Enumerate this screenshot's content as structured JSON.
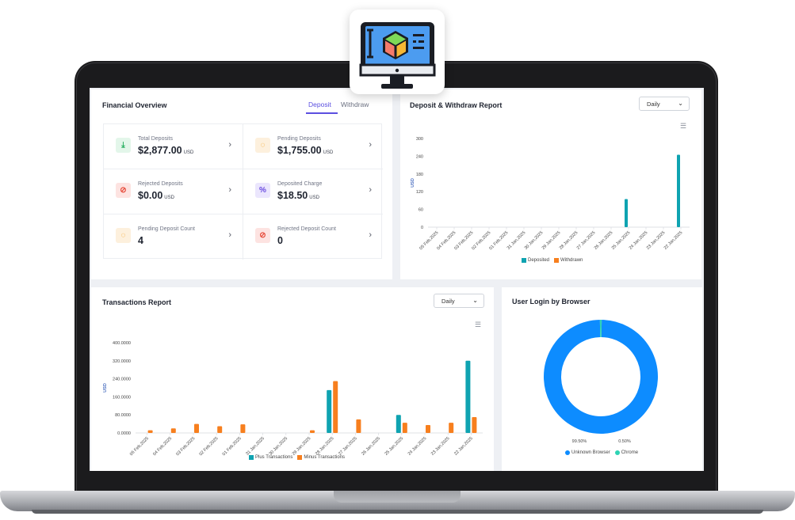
{
  "financial_overview": {
    "title": "Financial Overview",
    "tabs": [
      "Deposit",
      "Withdraw"
    ],
    "stats": [
      {
        "label": "Total Deposits",
        "value": "$2,877.00",
        "unit": "USD",
        "icon": "download-icon",
        "color": "#27ae60",
        "bg": "#e3f6ea",
        "glyph": "⤓"
      },
      {
        "label": "Pending Deposits",
        "value": "$1,755.00",
        "unit": "USD",
        "icon": "pending-icon",
        "color": "#f39c12",
        "bg": "#fdf0dd",
        "glyph": "◌"
      },
      {
        "label": "Rejected Deposits",
        "value": "$0.00",
        "unit": "USD",
        "icon": "ban-icon",
        "color": "#e74c3c",
        "bg": "#fde3e1",
        "glyph": "⊘"
      },
      {
        "label": "Deposited Charge",
        "value": "$18.50",
        "unit": "USD",
        "icon": "percent-icon",
        "color": "#6a4be0",
        "bg": "#ebe6fd",
        "glyph": "%"
      },
      {
        "label": "Pending Deposit Count",
        "value": "4",
        "unit": "",
        "icon": "pending-icon",
        "color": "#f39c12",
        "bg": "#fdf0dd",
        "glyph": "◌"
      },
      {
        "label": "Rejected Deposit Count",
        "value": "0",
        "unit": "",
        "icon": "ban-icon",
        "color": "#e74c3c",
        "bg": "#fde3e1",
        "glyph": "⊘"
      }
    ]
  },
  "deposit_report": {
    "title": "Deposit & Withdraw Report",
    "select": "Daily",
    "menu_icon": "hamburger-menu-icon"
  },
  "transactions_report": {
    "title": "Transactions Report",
    "select": "Daily",
    "menu_icon": "hamburger-menu-icon"
  },
  "user_login": {
    "title": "User Login by Browser"
  },
  "chart_data": [
    {
      "type": "bar",
      "id": "deposit-withdraw",
      "categories": [
        "05 Feb,2025",
        "04 Feb,2025",
        "03 Feb,2025",
        "02 Feb,2025",
        "01 Feb,2025",
        "31 Jan,2025",
        "30 Jan,2025",
        "29 Jan,2025",
        "28 Jan,2025",
        "27 Jan,2025",
        "26 Jan,2025",
        "25 Jan,2025",
        "24 Jan,2025",
        "23 Jan,2025",
        "22 Jan,2025"
      ],
      "series": [
        {
          "name": "Deposited",
          "color": "#0fa3b1",
          "values": [
            0,
            0,
            0,
            0,
            0,
            0,
            0,
            0,
            0,
            0,
            0,
            95,
            0,
            0,
            245
          ]
        },
        {
          "name": "Withdrawn",
          "color": "#f77f1e",
          "values": [
            0,
            0,
            0,
            0,
            0,
            0,
            0,
            0,
            0,
            0,
            0,
            0,
            0,
            0,
            0
          ]
        }
      ],
      "ylabel": "USD",
      "yticks": [
        "0",
        "60",
        "120",
        "180",
        "240",
        "300"
      ],
      "ylim": [
        0,
        300
      ],
      "legend": "bottom"
    },
    {
      "type": "bar",
      "id": "transactions",
      "categories": [
        "05 Feb,2025",
        "04 Feb,2025",
        "03 Feb,2025",
        "02 Feb,2025",
        "01 Feb,2025",
        "31 Jan,2025",
        "30 Jan,2025",
        "29 Jan,2025",
        "28 Jan,2025",
        "27 Jan,2025",
        "26 Jan,2025",
        "25 Jan,2025",
        "24 Jan,2025",
        "23 Jan,2025",
        "22 Jan,2025"
      ],
      "series": [
        {
          "name": "Plus Transactions",
          "color": "#0fa3b1",
          "values": [
            0,
            0,
            0,
            0,
            0,
            0,
            0,
            0,
            190,
            0,
            0,
            80,
            0,
            0,
            320
          ]
        },
        {
          "name": "Minus Transactions",
          "color": "#f77f1e",
          "values": [
            12,
            20,
            40,
            30,
            38,
            0,
            0,
            12,
            230,
            60,
            0,
            45,
            35,
            45,
            70
          ]
        }
      ],
      "ylabel": "USD",
      "yticks": [
        "0.0000",
        "80.0000",
        "160.0000",
        "240.0000",
        "320.0000",
        "400.0000"
      ],
      "ylim": [
        0,
        400
      ],
      "legend": "bottom"
    },
    {
      "type": "pie",
      "id": "browser",
      "labels": [
        "Unknown Browser",
        "Chrome"
      ],
      "values": [
        99.5,
        0.5
      ],
      "value_labels": [
        "99.50%",
        "0.50%"
      ],
      "colors": [
        "#0d8cff",
        "#2ed3b4"
      ],
      "legend": "bottom"
    }
  ]
}
